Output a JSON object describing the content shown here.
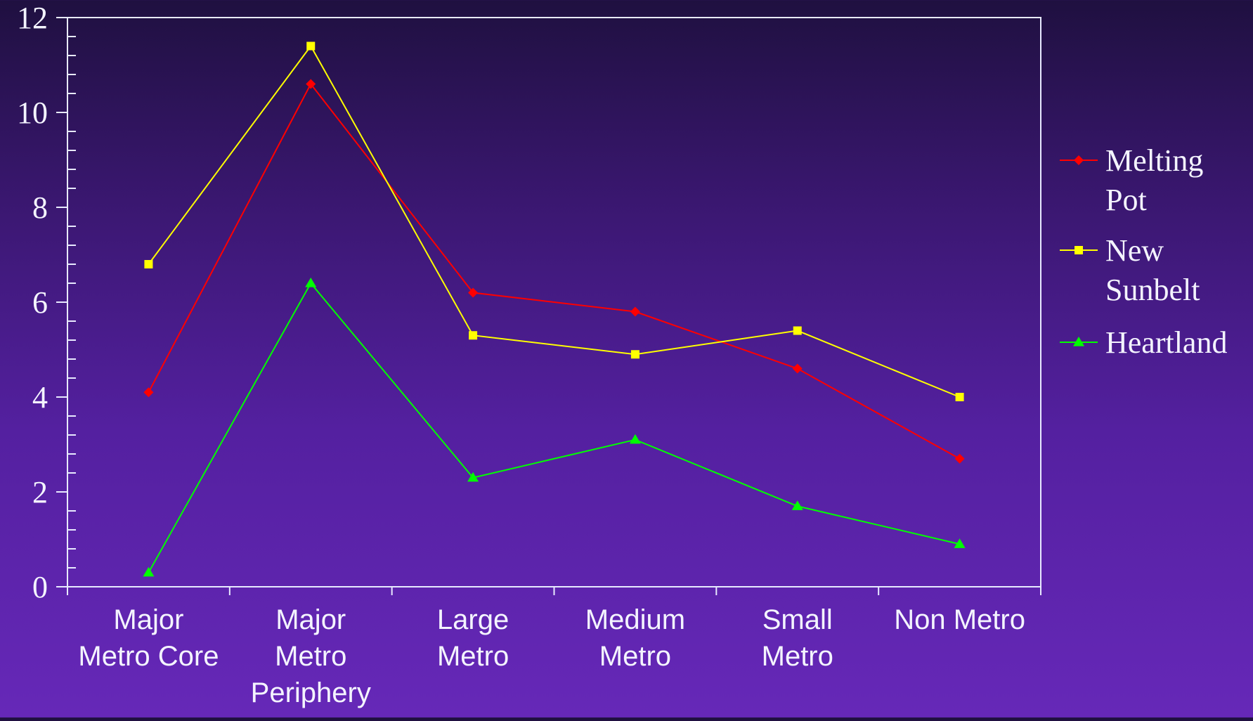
{
  "chart_data": {
    "type": "line",
    "title": "",
    "xlabel": "",
    "ylabel": "",
    "ylim": [
      0,
      12
    ],
    "y_ticks": [
      "0",
      "2",
      "4",
      "6",
      "8",
      "10",
      "12"
    ],
    "categories": [
      [
        "Major",
        "Metro Core"
      ],
      [
        "Major",
        "Metro",
        "Periphery"
      ],
      [
        "Large",
        "Metro"
      ],
      [
        "Medium",
        "Metro"
      ],
      [
        "Small",
        "Metro"
      ],
      [
        "Non Metro"
      ]
    ],
    "series": [
      {
        "name": [
          "Melting",
          "Pot"
        ],
        "color": "#ff0000",
        "marker": "diamond",
        "values": [
          4.1,
          10.6,
          6.2,
          5.8,
          4.6,
          2.7
        ]
      },
      {
        "name": [
          "New",
          "Sunbelt"
        ],
        "color": "#ffff00",
        "marker": "square",
        "values": [
          6.8,
          11.4,
          5.3,
          4.9,
          5.4,
          4.0
        ]
      },
      {
        "name": [
          "Heartland"
        ],
        "color": "#00ff00",
        "marker": "triangle",
        "values": [
          0.3,
          6.4,
          2.3,
          3.1,
          1.7,
          0.9
        ]
      }
    ],
    "grid": false,
    "legend_position": "right",
    "axis_color": "#e8eaff"
  }
}
